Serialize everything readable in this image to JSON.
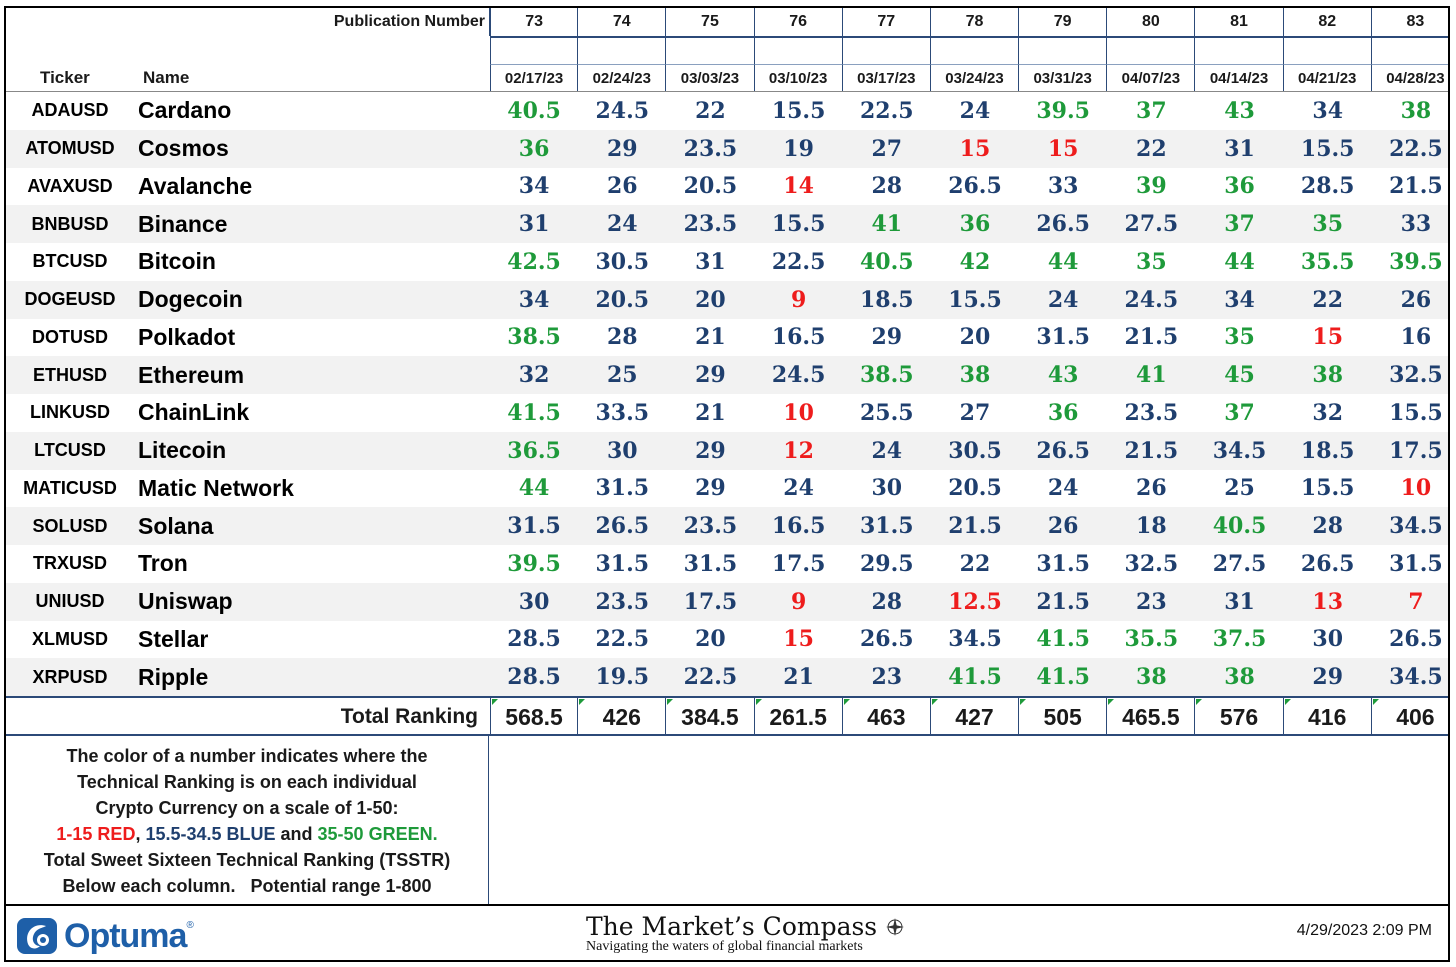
{
  "header": {
    "publication_label": "Publication Number",
    "ticker_label": "Ticker",
    "name_label": "Name"
  },
  "columns": [
    {
      "pub": "73",
      "date": "02/17/23"
    },
    {
      "pub": "74",
      "date": "02/24/23"
    },
    {
      "pub": "75",
      "date": "03/03/23"
    },
    {
      "pub": "76",
      "date": "03/10/23"
    },
    {
      "pub": "77",
      "date": "03/17/23"
    },
    {
      "pub": "78",
      "date": "03/24/23"
    },
    {
      "pub": "79",
      "date": "03/31/23"
    },
    {
      "pub": "80",
      "date": "04/07/23"
    },
    {
      "pub": "81",
      "date": "04/14/23"
    },
    {
      "pub": "82",
      "date": "04/21/23"
    },
    {
      "pub": "83",
      "date": "04/28/23"
    }
  ],
  "rows": [
    {
      "ticker": "ADAUSD",
      "name": "Cardano",
      "values": [
        "40.5",
        "24.5",
        "22",
        "15.5",
        "22.5",
        "24",
        "39.5",
        "37",
        "43",
        "34",
        "38"
      ]
    },
    {
      "ticker": "ATOMUSD",
      "name": "Cosmos",
      "values": [
        "36",
        "29",
        "23.5",
        "19",
        "27",
        "15",
        "15",
        "22",
        "31",
        "15.5",
        "22.5"
      ]
    },
    {
      "ticker": "AVAXUSD",
      "name": "Avalanche",
      "values": [
        "34",
        "26",
        "20.5",
        "14",
        "28",
        "26.5",
        "33",
        "39",
        "36",
        "28.5",
        "21.5"
      ]
    },
    {
      "ticker": "BNBUSD",
      "name": "Binance",
      "values": [
        "31",
        "24",
        "23.5",
        "15.5",
        "41",
        "36",
        "26.5",
        "27.5",
        "37",
        "35",
        "33"
      ]
    },
    {
      "ticker": "BTCUSD",
      "name": "Bitcoin",
      "values": [
        "42.5",
        "30.5",
        "31",
        "22.5",
        "40.5",
        "42",
        "44",
        "35",
        "44",
        "35.5",
        "39.5"
      ]
    },
    {
      "ticker": "DOGEUSD",
      "name": "Dogecoin",
      "values": [
        "34",
        "20.5",
        "20",
        "9",
        "18.5",
        "15.5",
        "24",
        "24.5",
        "34",
        "22",
        "26"
      ]
    },
    {
      "ticker": "DOTUSD",
      "name": "Polkadot",
      "values": [
        "38.5",
        "28",
        "21",
        "16.5",
        "29",
        "20",
        "31.5",
        "21.5",
        "35",
        "15",
        "16"
      ]
    },
    {
      "ticker": "ETHUSD",
      "name": "Ethereum",
      "values": [
        "32",
        "25",
        "29",
        "24.5",
        "38.5",
        "38",
        "43",
        "41",
        "45",
        "38",
        "32.5"
      ]
    },
    {
      "ticker": "LINKUSD",
      "name": "ChainLink",
      "values": [
        "41.5",
        "33.5",
        "21",
        "10",
        "25.5",
        "27",
        "36",
        "23.5",
        "37",
        "32",
        "15.5"
      ]
    },
    {
      "ticker": "LTCUSD",
      "name": "Litecoin",
      "values": [
        "36.5",
        "30",
        "29",
        "12",
        "24",
        "30.5",
        "26.5",
        "21.5",
        "34.5",
        "18.5",
        "17.5"
      ]
    },
    {
      "ticker": "MATICUSD",
      "name": "Matic Network",
      "values": [
        "44",
        "31.5",
        "29",
        "24",
        "30",
        "20.5",
        "24",
        "26",
        "25",
        "15.5",
        "10"
      ]
    },
    {
      "ticker": "SOLUSD",
      "name": "Solana",
      "values": [
        "31.5",
        "26.5",
        "23.5",
        "16.5",
        "31.5",
        "21.5",
        "26",
        "18",
        "40.5",
        "28",
        "34.5"
      ]
    },
    {
      "ticker": "TRXUSD",
      "name": "Tron",
      "values": [
        "39.5",
        "31.5",
        "31.5",
        "17.5",
        "29.5",
        "22",
        "31.5",
        "32.5",
        "27.5",
        "26.5",
        "31.5"
      ]
    },
    {
      "ticker": "UNIUSD",
      "name": "Uniswap",
      "values": [
        "30",
        "23.5",
        "17.5",
        "9",
        "28",
        "12.5",
        "21.5",
        "23",
        "31",
        "13",
        "7"
      ]
    },
    {
      "ticker": "XLMUSD",
      "name": "Stellar",
      "values": [
        "28.5",
        "22.5",
        "20",
        "15",
        "26.5",
        "34.5",
        "41.5",
        "35.5",
        "37.5",
        "30",
        "26.5"
      ]
    },
    {
      "ticker": "XRPUSD",
      "name": "Ripple",
      "values": [
        "28.5",
        "19.5",
        "22.5",
        "21",
        "23",
        "41.5",
        "41.5",
        "38",
        "38",
        "29",
        "34.5"
      ]
    }
  ],
  "total": {
    "label": "Total Ranking",
    "values": [
      "568.5",
      "426",
      "384.5",
      "261.5",
      "463",
      "427",
      "505",
      "465.5",
      "576",
      "416",
      "406"
    ]
  },
  "legend": {
    "line1": "The color of a number indicates where the",
    "line2": "Technical Ranking is on each individual",
    "line3": "Crypto Currency on a scale of 1-50:",
    "red_text": "1-15 RED",
    "sep1": ", ",
    "blue_text": "15.5-34.5 BLUE",
    "sep2": " and ",
    "green_text": "35-50 GREEN.",
    "line5": "Total Sweet Sixteen Technical Ranking (TSSTR)",
    "line6": "Below each column.   Potential range 1-800"
  },
  "footer": {
    "logo_text": "Optuma",
    "logo_reg": "®",
    "compass_title": "The Market’s Compass",
    "compass_subtitle": "Navigating the waters of global financial markets",
    "timestamp": "4/29/2023 2:09 PM"
  },
  "colors": {
    "red": "#ee1c1c",
    "blue": "#1f3f6e",
    "green": "#1e9a3a",
    "logo_blue": "#1e5fa8"
  }
}
